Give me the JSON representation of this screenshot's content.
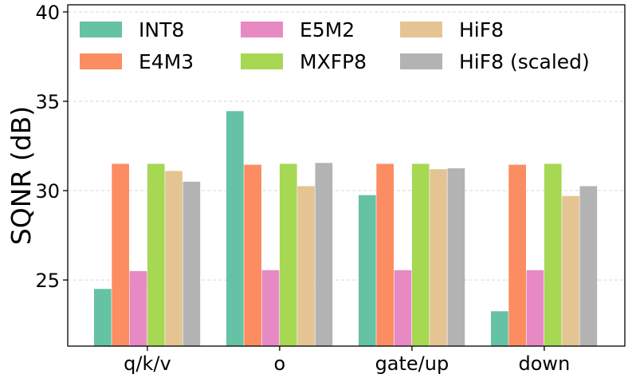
{
  "chart_data": {
    "type": "bar",
    "title": "",
    "xlabel": "",
    "ylabel": "SQNR (dB)",
    "ylim": [
      21.3,
      40.4
    ],
    "yticks": [
      25,
      30,
      35,
      40
    ],
    "grid": true,
    "legend_position": "top-left",
    "categories": [
      "q/k/v",
      "o",
      "gate/up",
      "down"
    ],
    "series": [
      {
        "name": "INT8",
        "color": "#66c2a5",
        "values": [
          24.5,
          34.45,
          29.75,
          23.25
        ]
      },
      {
        "name": "E4M3",
        "color": "#fc8d62",
        "values": [
          31.5,
          31.45,
          31.5,
          31.45
        ]
      },
      {
        "name": "E5M2",
        "color": "#e78ac3",
        "values": [
          25.5,
          25.55,
          25.55,
          25.55
        ]
      },
      {
        "name": "MXFP8",
        "color": "#a6d854",
        "values": [
          31.5,
          31.5,
          31.5,
          31.5
        ]
      },
      {
        "name": "HiF8",
        "color": "#e5c494",
        "values": [
          31.1,
          30.25,
          31.2,
          29.7
        ]
      },
      {
        "name": "HiF8 (scaled)",
        "color": "#b3b3b3",
        "values": [
          30.5,
          31.55,
          31.25,
          30.25
        ]
      }
    ]
  }
}
